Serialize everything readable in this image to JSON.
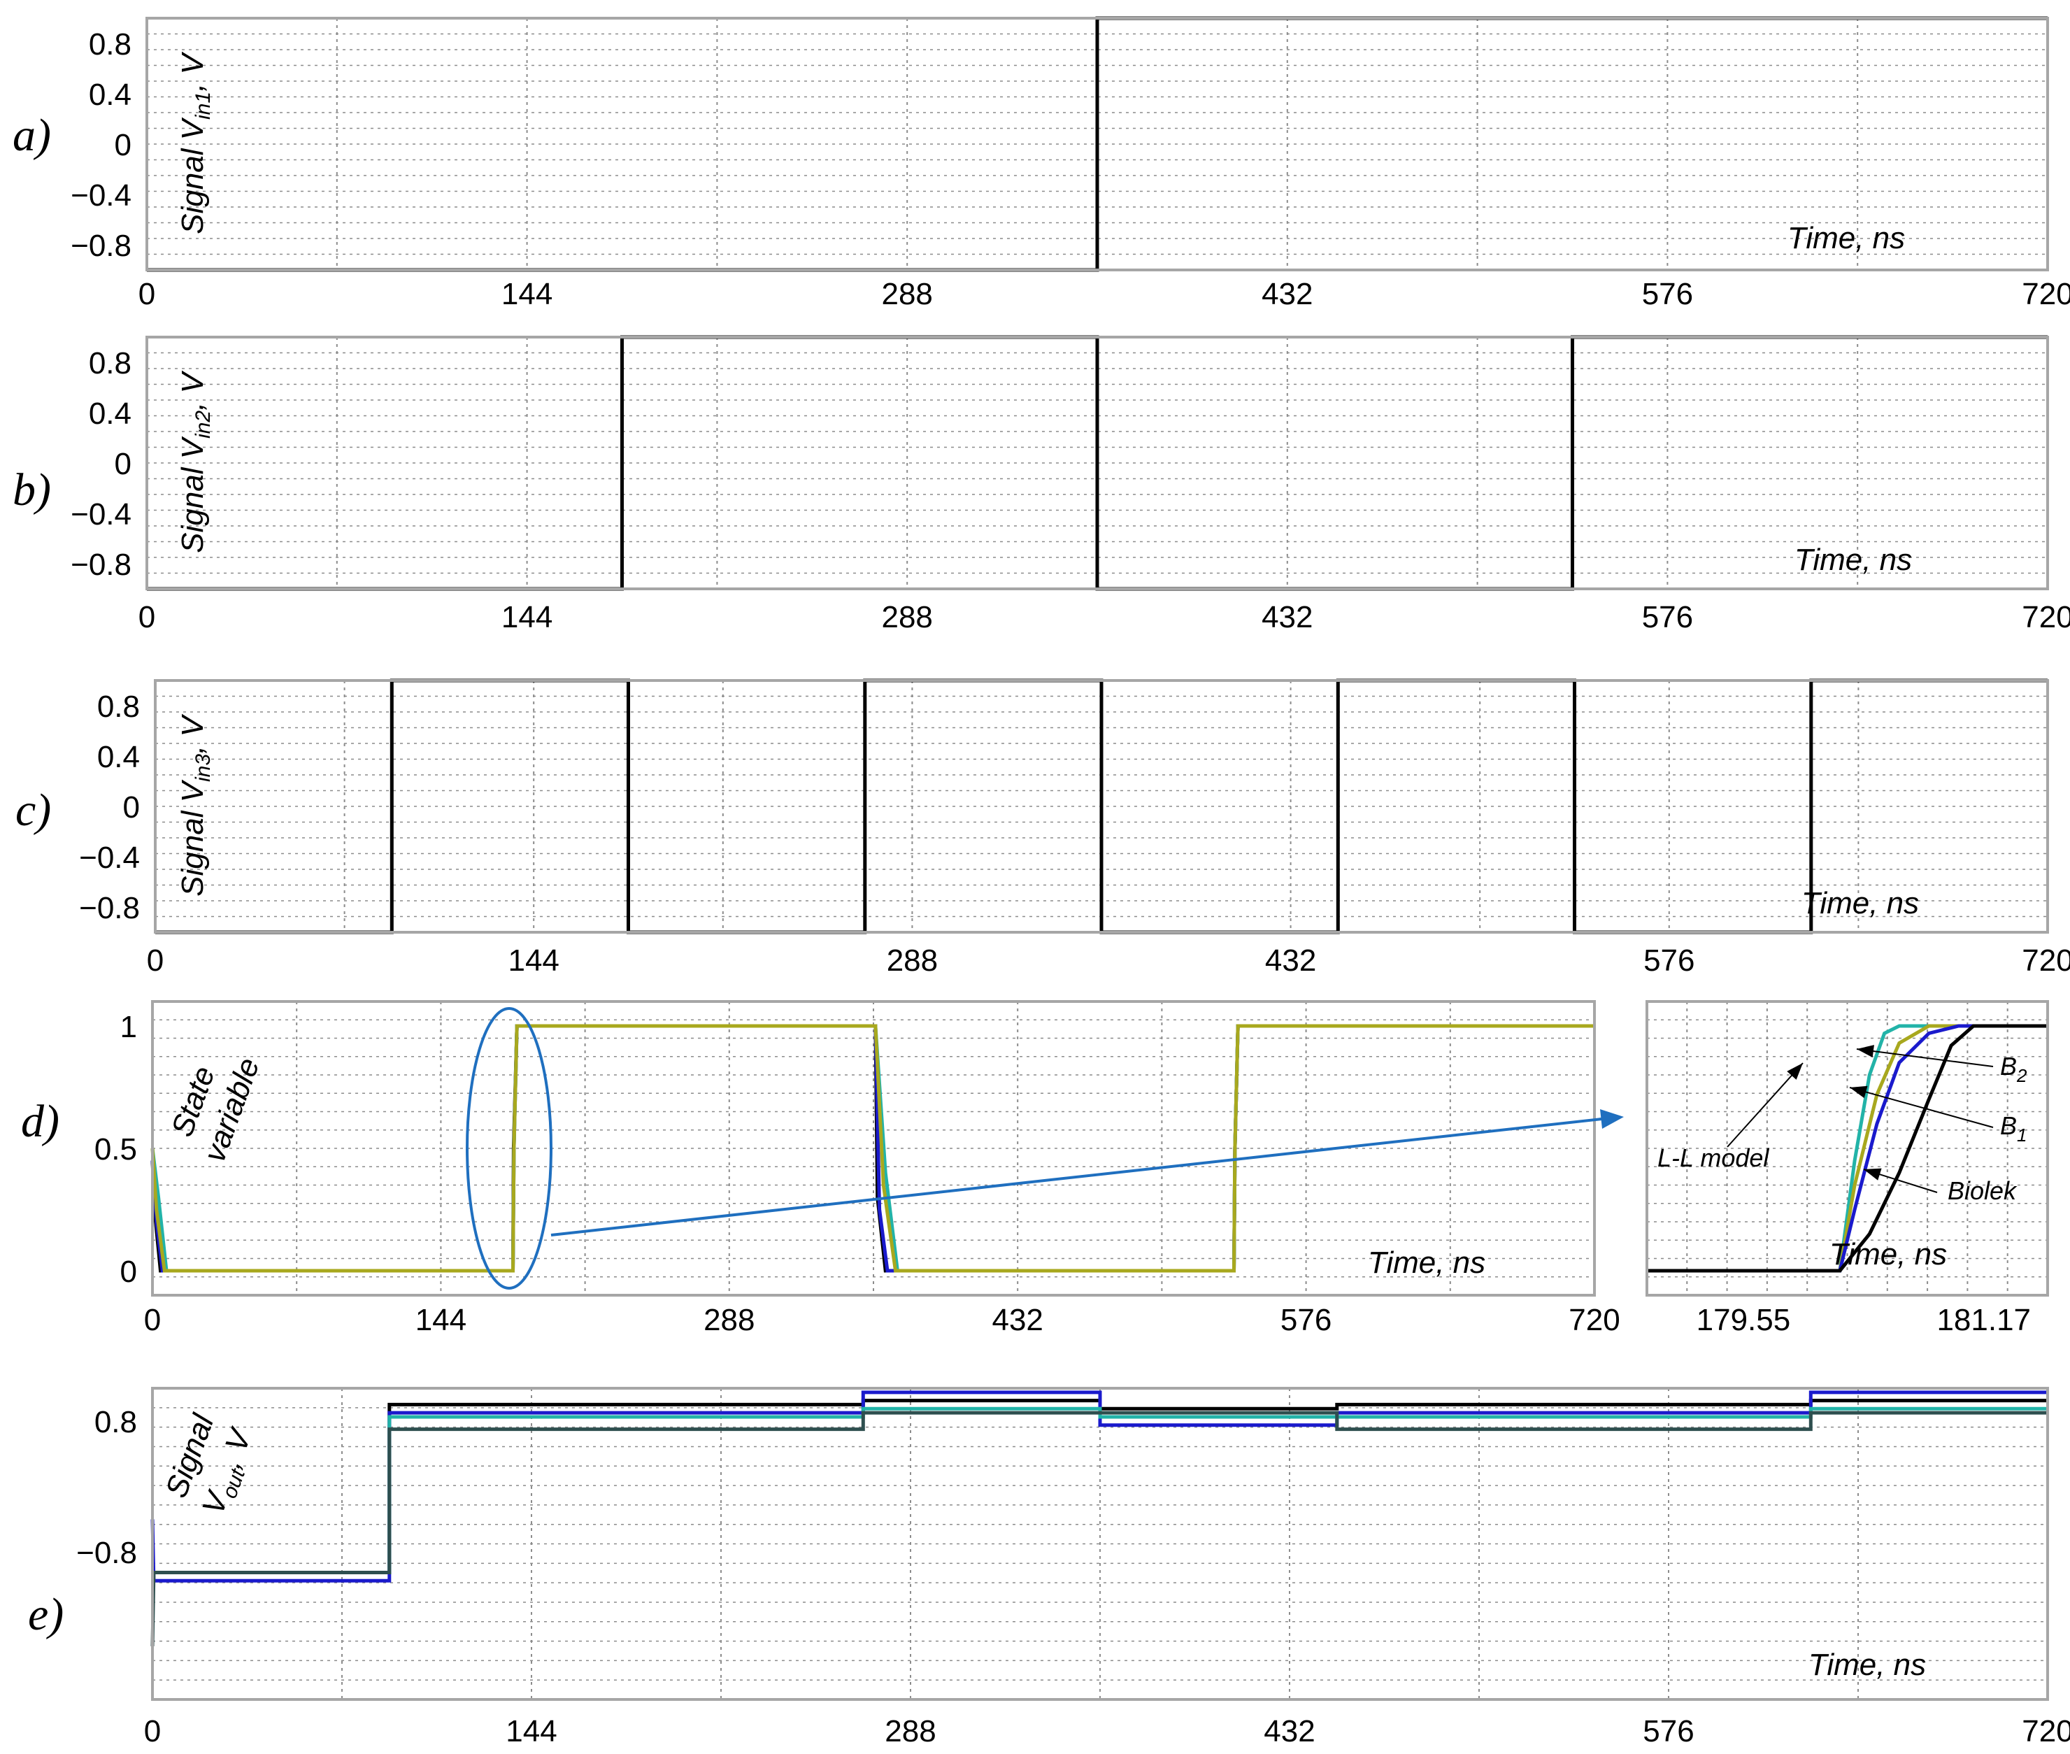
{
  "colors": {
    "frame": "#a6a6a6",
    "grid": "#8c8c8c",
    "signal": "#000000",
    "black": "#000000",
    "blue": "#1a1acc",
    "teal": "#22b3a8",
    "olive": "#a8a81e",
    "darkslate": "#2e4f4f",
    "arrow": "#1f6fbf"
  },
  "chart_data": [
    {
      "id": "a",
      "panel_label": "a)",
      "type": "line",
      "ylabel": "Signal V",
      "ylabel_sub": "in1",
      "ylabel_suffix": ", V",
      "xlabel": "Time, ns",
      "xlim": [
        0,
        720
      ],
      "ylim": [
        -1,
        1
      ],
      "xticks": [
        "0",
        "144",
        "288",
        "432",
        "576",
        "720"
      ],
      "yticks": [
        "0.8",
        "0.4",
        "0",
        "−0.4",
        "−0.8"
      ],
      "series": [
        {
          "color": "signal",
          "x": [
            0,
            360,
            360,
            720
          ],
          "y": [
            -1,
            -1,
            1,
            1
          ]
        }
      ]
    },
    {
      "id": "b",
      "panel_label": "b)",
      "type": "line",
      "ylabel": "Signal V",
      "ylabel_sub": "in2",
      "ylabel_suffix": ", V",
      "xlabel": "Time, ns",
      "xlim": [
        0,
        720
      ],
      "ylim": [
        -1,
        1
      ],
      "xticks": [
        "0",
        "144",
        "288",
        "432",
        "576",
        "720"
      ],
      "yticks": [
        "0.8",
        "0.4",
        "0",
        "−0.4",
        "−0.8"
      ],
      "series": [
        {
          "color": "signal",
          "x": [
            0,
            180,
            180,
            360,
            360,
            540,
            540,
            720
          ],
          "y": [
            -1,
            -1,
            1,
            1,
            -1,
            -1,
            1,
            1
          ]
        }
      ]
    },
    {
      "id": "c",
      "panel_label": "c)",
      "type": "line",
      "ylabel": "Signal V",
      "ylabel_sub": "in3",
      "ylabel_suffix": ", V",
      "xlabel": "Time, ns",
      "xlim": [
        0,
        720
      ],
      "ylim": [
        -1,
        1
      ],
      "xticks": [
        "0",
        "144",
        "288",
        "432",
        "576",
        "720"
      ],
      "yticks": [
        "0.8",
        "0.4",
        "0",
        "−0.4",
        "−0.8"
      ],
      "series": [
        {
          "color": "signal",
          "x": [
            0,
            90,
            90,
            180,
            180,
            270,
            270,
            360,
            360,
            450,
            450,
            540,
            540,
            630,
            630,
            720
          ],
          "y": [
            -1,
            -1,
            1,
            1,
            -1,
            -1,
            1,
            1,
            -1,
            -1,
            1,
            1,
            -1,
            -1,
            1,
            1
          ]
        }
      ]
    },
    {
      "id": "d",
      "panel_label": "d)",
      "type": "line",
      "ylabel": "State variable",
      "xlabel": "Time, ns",
      "xlim": [
        0,
        720
      ],
      "ylim": [
        -0.1,
        1.1
      ],
      "xticks": [
        "0",
        "144",
        "288",
        "432",
        "576",
        "720"
      ],
      "yticks": [
        "1",
        "0.5",
        "0"
      ],
      "series": [
        {
          "color": "black",
          "x": [
            0,
            1,
            4,
            180,
            180.3,
            182,
            361,
            362,
            366,
            540,
            540.5,
            542,
            720
          ],
          "y": [
            0.45,
            0.25,
            0,
            0,
            0.5,
            1,
            1,
            0.3,
            0,
            0,
            0.5,
            1,
            1
          ]
        },
        {
          "color": "blue",
          "x": [
            0,
            2,
            5,
            180,
            180.5,
            182,
            361,
            363,
            367,
            540,
            540.5,
            542,
            720
          ],
          "y": [
            0.45,
            0.2,
            0,
            0,
            0.5,
            1,
            1,
            0.25,
            0,
            0,
            0.5,
            1,
            1
          ]
        },
        {
          "color": "teal",
          "x": [
            0,
            3,
            7,
            180,
            180.5,
            182,
            361,
            366,
            372,
            540,
            540.5,
            542,
            720
          ],
          "y": [
            0.5,
            0.3,
            0,
            0,
            0.5,
            1,
            1,
            0.4,
            0,
            0,
            0.5,
            1,
            1
          ]
        },
        {
          "color": "olive",
          "x": [
            0,
            2,
            6,
            180,
            180.5,
            182,
            361,
            365,
            371,
            540,
            540.5,
            542,
            720
          ],
          "y": [
            0.5,
            0.25,
            0,
            0,
            0.5,
            1,
            1,
            0.35,
            0,
            0,
            0.5,
            1,
            1
          ]
        }
      ]
    },
    {
      "id": "d_zoom",
      "type": "line",
      "xlabel": "Time, ns",
      "xlim": [
        178.9,
        181.6
      ],
      "ylim": [
        -0.1,
        1.1
      ],
      "xticks": [
        "179.55",
        "181.17"
      ],
      "xtick_values": [
        179.55,
        181.17
      ],
      "series": [
        {
          "name": "L-L model",
          "color": "teal",
          "x": [
            178.9,
            180.2,
            180.3,
            180.4,
            180.5,
            180.6,
            181.6
          ],
          "y": [
            0,
            0,
            0.45,
            0.8,
            0.97,
            1,
            1
          ]
        },
        {
          "name": "B2",
          "color": "olive",
          "x": [
            178.9,
            180.2,
            180.3,
            180.45,
            180.6,
            180.8,
            181.6
          ],
          "y": [
            0,
            0,
            0.35,
            0.72,
            0.93,
            1,
            1
          ]
        },
        {
          "name": "B1",
          "color": "blue",
          "x": [
            178.9,
            180.2,
            180.3,
            180.45,
            180.6,
            180.8,
            181.0,
            181.6
          ],
          "y": [
            0,
            0,
            0.25,
            0.6,
            0.85,
            0.97,
            1,
            1
          ]
        },
        {
          "name": "Biolek",
          "color": "black",
          "x": [
            178.9,
            180.2,
            180.4,
            180.6,
            180.8,
            180.95,
            181.1,
            181.6
          ],
          "y": [
            0,
            0,
            0.15,
            0.4,
            0.7,
            0.92,
            1,
            1
          ]
        }
      ],
      "annotations": [
        {
          "text": "B",
          "sub": "2"
        },
        {
          "text": "B",
          "sub": "1"
        },
        {
          "text": "L-L model"
        },
        {
          "text": "Biolek"
        }
      ]
    },
    {
      "id": "e",
      "panel_label": "e)",
      "type": "line",
      "ylabel": "Signal",
      "ylabel2": "V",
      "ylabel2_sub": "out",
      "ylabel2_suffix": ", V",
      "xlabel": "Time, ns",
      "xlim": [
        0,
        720
      ],
      "ylim": [
        -2.6,
        1.2
      ],
      "xticks": [
        "0",
        "144",
        "288",
        "432",
        "576",
        "720"
      ],
      "yticks": [
        "0.8",
        "−0.8"
      ],
      "series": [
        {
          "color": "black",
          "x": [
            0,
            90,
            90,
            270,
            270,
            360,
            360,
            450,
            450,
            630,
            630,
            720
          ],
          "y": [
            -1.05,
            -1.05,
            1.0,
            1.0,
            1.05,
            1.05,
            0.95,
            0.95,
            1.0,
            1.0,
            1.05,
            1.05
          ]
        },
        {
          "color": "blue",
          "x": [
            0,
            0.5,
            1,
            90,
            90,
            270,
            270,
            360,
            360,
            450,
            450,
            630,
            630,
            720
          ],
          "y": [
            -0.4,
            -1.15,
            -1.15,
            -1.15,
            0.9,
            0.9,
            1.15,
            1.15,
            0.75,
            0.75,
            0.9,
            0.9,
            1.15,
            1.15
          ]
        },
        {
          "color": "teal",
          "x": [
            0,
            90,
            90,
            270,
            270,
            360,
            360,
            450,
            450,
            630,
            630,
            720
          ],
          "y": [
            -1.05,
            -1.05,
            0.85,
            0.85,
            0.95,
            0.95,
            0.85,
            0.85,
            0.85,
            0.85,
            0.95,
            0.95
          ]
        },
        {
          "color": "darkslate",
          "x": [
            0,
            0.5,
            1,
            90,
            90,
            270,
            270,
            360,
            360,
            450,
            450,
            630,
            630,
            720
          ],
          "y": [
            -1.95,
            -1.05,
            -1.05,
            -1.05,
            0.7,
            0.7,
            0.9,
            0.9,
            0.9,
            0.9,
            0.7,
            0.7,
            0.9,
            0.9
          ]
        }
      ]
    }
  ]
}
